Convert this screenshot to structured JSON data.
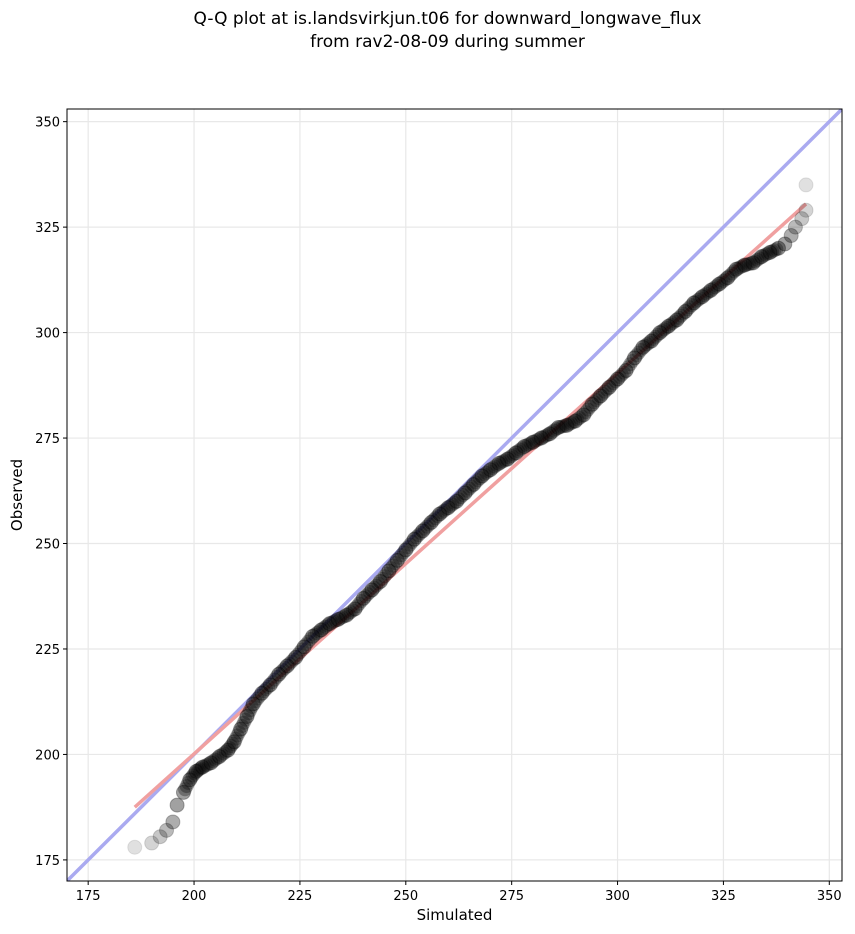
{
  "chart_data": {
    "type": "scatter",
    "title_line1": "Q-Q plot at is.landsvirkjun.t06 for downward_longwave_flux",
    "title_line2": "from rav2-08-09 during summer",
    "xlabel": "Simulated",
    "ylabel": "Observed",
    "xlim": [
      170,
      353
    ],
    "ylim": [
      170,
      353
    ],
    "xticks": [
      175,
      200,
      225,
      250,
      275,
      300,
      325,
      350
    ],
    "yticks": [
      175,
      200,
      225,
      250,
      275,
      300,
      325,
      350
    ],
    "grid": true,
    "reference_line": {
      "color": "#aaaaf0",
      "from": [
        170,
        170
      ],
      "to": [
        353,
        353
      ]
    },
    "fit_line": {
      "color": "#f0a0a0",
      "from": [
        186,
        187.5
      ],
      "to": [
        344.5,
        330.5
      ]
    },
    "quantiles": {
      "color": "#000000",
      "points": [
        [
          186,
          178
        ],
        [
          190,
          179
        ],
        [
          192,
          180.5
        ],
        [
          193.5,
          182
        ],
        [
          195,
          184
        ],
        [
          196,
          188
        ],
        [
          197.5,
          191
        ],
        [
          199,
          194
        ],
        [
          200.5,
          196
        ],
        [
          202,
          197
        ],
        [
          204,
          198
        ],
        [
          206,
          199.5
        ],
        [
          208,
          201
        ],
        [
          209.5,
          203
        ],
        [
          211,
          206
        ],
        [
          212.5,
          209
        ],
        [
          214,
          212
        ],
        [
          216,
          214.5
        ],
        [
          218,
          216.5
        ],
        [
          220,
          219
        ],
        [
          222,
          221
        ],
        [
          224,
          223
        ],
        [
          226,
          225.5
        ],
        [
          228,
          228
        ],
        [
          230,
          229.5
        ],
        [
          232,
          231
        ],
        [
          234,
          232
        ],
        [
          236,
          233
        ],
        [
          238,
          234.5
        ],
        [
          240,
          237
        ],
        [
          242,
          239
        ],
        [
          244,
          241
        ],
        [
          246,
          243.5
        ],
        [
          248,
          246
        ],
        [
          250,
          248.5
        ],
        [
          252,
          251
        ],
        [
          254,
          253
        ],
        [
          256,
          255
        ],
        [
          258,
          257
        ],
        [
          260,
          258.5
        ],
        [
          262,
          260
        ],
        [
          264,
          262
        ],
        [
          266,
          264
        ],
        [
          268,
          266
        ],
        [
          270,
          267.5
        ],
        [
          272,
          269
        ],
        [
          274,
          270
        ],
        [
          276,
          271.5
        ],
        [
          278,
          273
        ],
        [
          280,
          274
        ],
        [
          282,
          275
        ],
        [
          284,
          276
        ],
        [
          286,
          277.5
        ],
        [
          288,
          278
        ],
        [
          290,
          279
        ],
        [
          292,
          280.5
        ],
        [
          294,
          283
        ],
        [
          296,
          285
        ],
        [
          298,
          287
        ],
        [
          300,
          289
        ],
        [
          302,
          291
        ],
        [
          304,
          294
        ],
        [
          306,
          296.5
        ],
        [
          308,
          298
        ],
        [
          310,
          300
        ],
        [
          312,
          301.5
        ],
        [
          314,
          303
        ],
        [
          316,
          305
        ],
        [
          318,
          307
        ],
        [
          320,
          308.5
        ],
        [
          322,
          310
        ],
        [
          324,
          311.5
        ],
        [
          326,
          313
        ],
        [
          328,
          315
        ],
        [
          330,
          316
        ],
        [
          332,
          316.5
        ],
        [
          334,
          318
        ],
        [
          336,
          319
        ],
        [
          338,
          320
        ],
        [
          339.5,
          321
        ],
        [
          341,
          323
        ],
        [
          342,
          325
        ],
        [
          343.5,
          327
        ],
        [
          344.5,
          329
        ],
        [
          344.5,
          335
        ]
      ]
    }
  }
}
